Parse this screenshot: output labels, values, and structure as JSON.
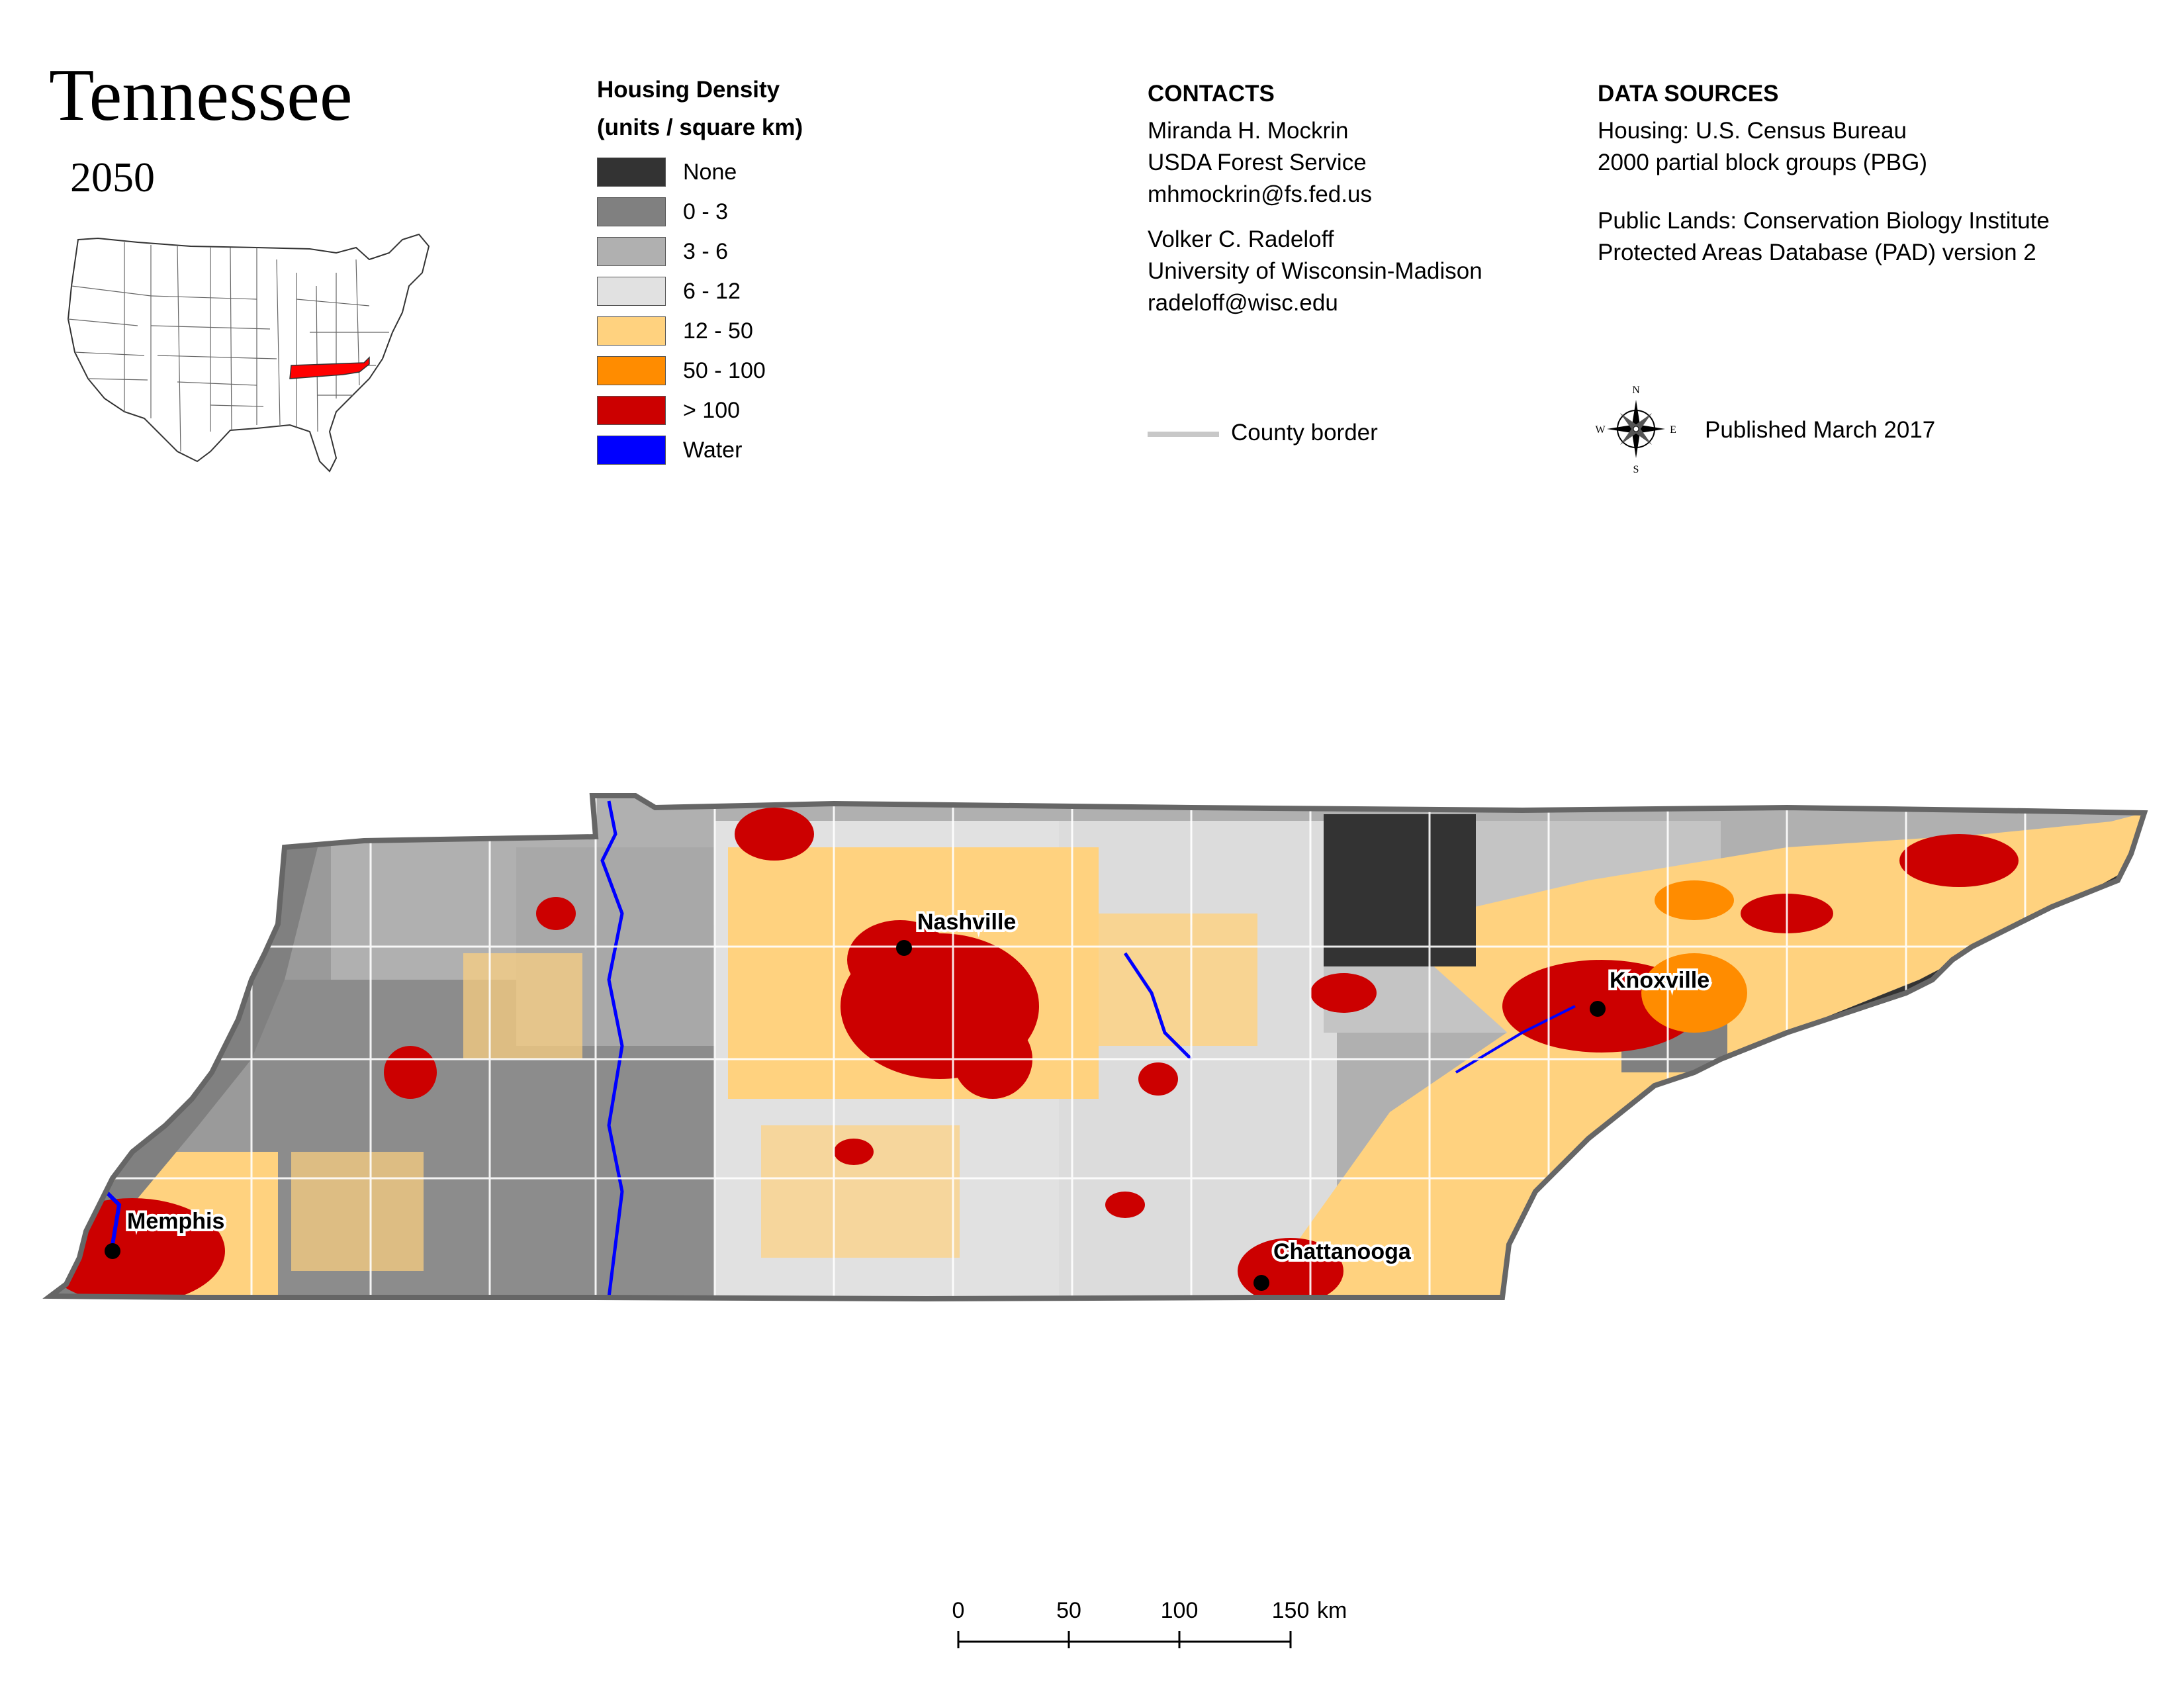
{
  "header": {
    "title": "Tennessee",
    "year": "2050"
  },
  "legend": {
    "title_line1": "Housing Density",
    "title_line2": "(units / square km)",
    "items": [
      {
        "label": "None",
        "color": "#333333"
      },
      {
        "label": "0 - 3",
        "color": "#808080"
      },
      {
        "label": "3 - 6",
        "color": "#b0b0b0"
      },
      {
        "label": "6 - 12",
        "color": "#e1e1e1"
      },
      {
        "label": "12 - 50",
        "color": "#ffd27f"
      },
      {
        "label": "50 - 100",
        "color": "#ff8c00"
      },
      {
        "label": "> 100",
        "color": "#cc0000"
      },
      {
        "label": "Water",
        "color": "#0000ff"
      }
    ]
  },
  "contacts": {
    "heading": "CONTACTS",
    "person1": [
      "Miranda H. Mockrin",
      "USDA Forest Service",
      "mhmockrin@fs.fed.us"
    ],
    "person2": [
      "Volker C. Radeloff",
      "University of Wisconsin-Madison",
      "radeloff@wisc.edu"
    ],
    "county_border_label": "County border"
  },
  "sources": {
    "heading": "DATA SOURCES",
    "housing": [
      "Housing: U.S. Census Bureau",
      "2000 partial block groups (PBG)"
    ],
    "public_lands": [
      "Public Lands: Conservation Biology Institute",
      "Protected Areas Database (PAD) version 2"
    ],
    "published": "Published March 2017"
  },
  "compass": {
    "n": "N",
    "s": "S",
    "e": "E",
    "w": "W"
  },
  "cities": {
    "nashville": "Nashville",
    "knoxville": "Knoxville",
    "memphis": "Memphis",
    "chattanooga": "Chattanooga"
  },
  "scale": {
    "ticks": [
      "0",
      "50",
      "100",
      "150"
    ],
    "unit": "km"
  },
  "colors": {
    "state_highlight": "#ff0000",
    "state_border": "#666666",
    "county_line": "#ffffff"
  }
}
